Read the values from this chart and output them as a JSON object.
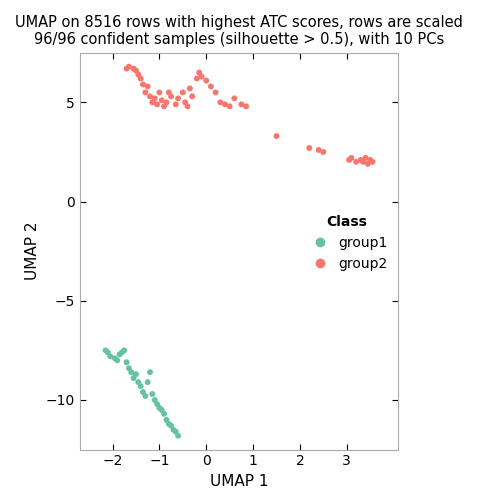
{
  "title_line1": "UMAP on 8516 rows with highest ATC scores, rows are scaled",
  "title_line2": "96/96 confident samples (silhouette > 0.5), with 10 PCs",
  "xlabel": "UMAP 1",
  "ylabel": "UMAP 2",
  "xlim": [
    -2.7,
    4.1
  ],
  "ylim": [
    -12.5,
    7.5
  ],
  "xticks": [
    -2,
    -1,
    0,
    1,
    2,
    3
  ],
  "yticks": [
    -10,
    -5,
    0,
    5
  ],
  "group1_color": "#66C2A5",
  "group2_color": "#F8766D",
  "group1_x": [
    -2.15,
    -2.1,
    -2.05,
    -1.95,
    -1.9,
    -1.85,
    -1.8,
    -1.75,
    -1.7,
    -1.65,
    -1.6,
    -1.55,
    -1.5,
    -1.45,
    -1.4,
    -1.35,
    -1.3,
    -1.25,
    -1.2,
    -1.15,
    -1.1,
    -1.05,
    -1.0,
    -0.95,
    -0.9,
    -0.85,
    -0.8,
    -0.75,
    -0.7,
    -0.65,
    -0.6
  ],
  "group1_y": [
    -7.5,
    -7.6,
    -7.8,
    -7.9,
    -8.0,
    -7.7,
    -7.6,
    -7.5,
    -8.1,
    -8.4,
    -8.6,
    -8.9,
    -8.7,
    -9.1,
    -9.3,
    -9.6,
    -9.8,
    -9.1,
    -8.6,
    -9.7,
    -10.0,
    -10.2,
    -10.4,
    -10.5,
    -10.7,
    -11.0,
    -11.2,
    -11.3,
    -11.5,
    -11.6,
    -11.8
  ],
  "group2_x": [
    -1.7,
    -1.65,
    -1.55,
    -1.5,
    -1.45,
    -1.4,
    -1.35,
    -1.3,
    -1.25,
    -1.2,
    -1.15,
    -1.1,
    -1.05,
    -1.0,
    -0.95,
    -0.9,
    -0.85,
    -0.8,
    -0.75,
    -0.65,
    -0.6,
    -0.5,
    -0.45,
    -0.4,
    -0.35,
    -0.3,
    -0.2,
    -0.15,
    -0.1,
    0.0,
    0.1,
    0.2,
    0.3,
    0.4,
    0.5,
    0.6,
    0.75,
    0.85,
    1.5,
    2.2,
    2.4,
    2.5,
    3.05,
    3.1,
    3.2,
    3.3,
    3.35,
    3.4,
    3.45,
    3.5,
    3.55
  ],
  "group2_y": [
    6.7,
    6.8,
    6.7,
    6.6,
    6.4,
    6.2,
    5.9,
    5.5,
    5.8,
    5.3,
    5.0,
    5.2,
    4.9,
    5.5,
    5.1,
    4.8,
    5.0,
    5.5,
    5.3,
    4.9,
    5.2,
    5.5,
    5.0,
    4.8,
    5.7,
    5.3,
    6.2,
    6.5,
    6.3,
    6.1,
    5.8,
    5.5,
    5.0,
    4.9,
    4.8,
    5.2,
    4.9,
    4.8,
    3.3,
    2.7,
    2.6,
    2.5,
    2.1,
    2.2,
    2.0,
    2.1,
    2.0,
    2.2,
    1.9,
    2.1,
    2.0
  ],
  "background_color": "#FFFFFF",
  "panel_bg": "#FFFFFF",
  "border_color": "#AAAAAA",
  "legend_title": "Class",
  "legend_labels": [
    "group1",
    "group2"
  ],
  "marker_size": 18,
  "title_fontsize": 10.5
}
